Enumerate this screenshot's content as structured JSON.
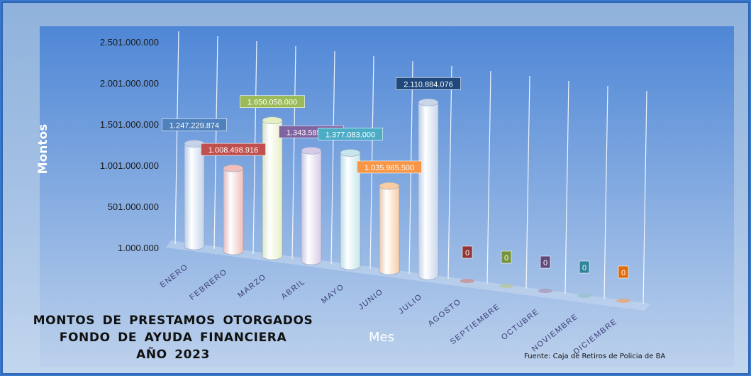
{
  "chart_data": {
    "type": "bar",
    "title_lines": [
      "MONTOS  DE  PRESTAMOS  OTORGADOS",
      "FONDO  DE  AYUDA  FINANCIERA",
      "AÑO   2023"
    ],
    "xlabel": "Mes",
    "ylabel": "Montos",
    "source": "Fuente: Caja de Retiros de Policia de BA",
    "categories": [
      "ENERO",
      "FEBRERO",
      "MARZO",
      "ABRIL",
      "MAYO",
      "JUNIO",
      "JULIO",
      "AGOSTO",
      "SEPTIEMBRE",
      "OCTUBRE",
      "NOVIEMBRE",
      "DICIEMBRE"
    ],
    "values": [
      1247229874,
      1008498916,
      1650058000,
      1343585229,
      1377083000,
      1035965500,
      2110884076,
      0,
      0,
      0,
      0,
      0
    ],
    "data_labels": [
      "1.247.229.874",
      "1.008.498.916",
      "1.650.058.000",
      "1.343.585.229",
      "1.377.083.000",
      "1.035.965.500",
      "2.110.884.076",
      "0",
      "0",
      "0",
      "0",
      "0"
    ],
    "y_ticks": [
      "2.501.000.000",
      "2.001.000.000",
      "1.501.000.000",
      "1.001.000.000",
      "501.000.000",
      "1.000.000"
    ],
    "y_tick_values": [
      2501000000,
      2001000000,
      1501000000,
      1001000000,
      501000000,
      1000000
    ],
    "ylim": [
      1000000,
      2501000000
    ],
    "grid": true,
    "colors": {
      "bars": [
        "#c4d3ea",
        "#f0bebb",
        "#e6efc4",
        "#d6cbe6",
        "#c7e6ea",
        "#f7cda5",
        "#c9d6ea",
        "#c99092",
        "#b8c79c",
        "#a99ab7",
        "#96c2cc",
        "#e8a878"
      ],
      "labels": [
        "#4f81bd",
        "#c0504d",
        "#9bbb59",
        "#8064a2",
        "#4bacc6",
        "#f79646",
        "#1f497d",
        "#943634",
        "#76923c",
        "#5f497a",
        "#31849b",
        "#e36c09"
      ]
    }
  }
}
